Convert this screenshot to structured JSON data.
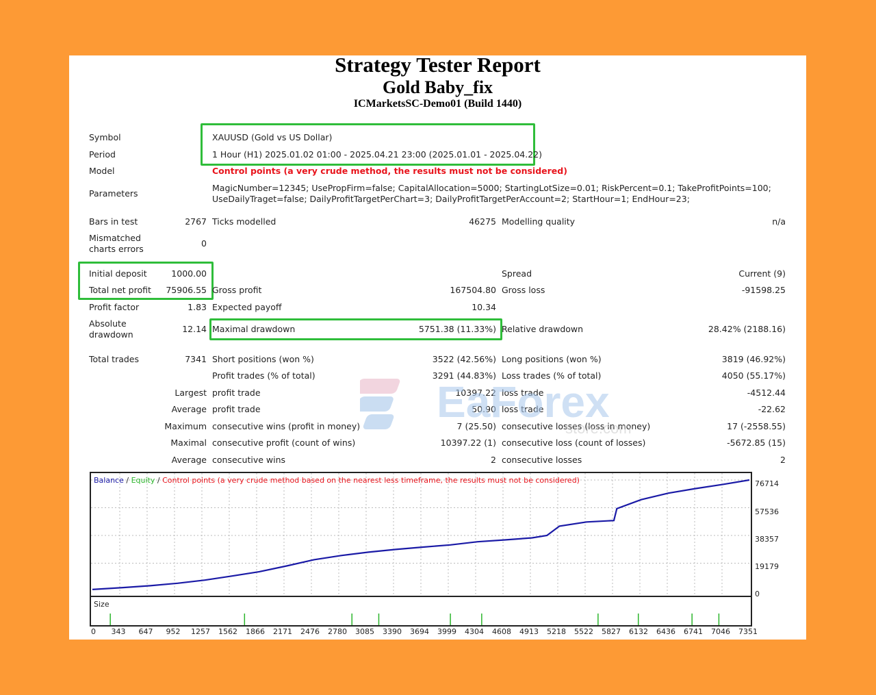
{
  "report": {
    "title": "Strategy Tester Report",
    "expert": "Gold Baby_fix",
    "server": "ICMarketsSC-Demo01 (Build 1440)"
  },
  "rows": {
    "symbol_label": "Symbol",
    "symbol_value": "XAUUSD (Gold vs US Dollar)",
    "period_label": "Period",
    "period_value": "1 Hour (H1) 2025.01.02 01:00 - 2025.04.21 23:00 (2025.01.01 - 2025.04.22)",
    "model_label": "Model",
    "model_value": "Control points (a very crude method, the results must not be considered)",
    "parameters_label": "Parameters",
    "parameters_line1": "MagicNumber=12345; UsePropFirm=false; CapitalAllocation=5000; StartingLotSize=0.01; RiskPercent=0.1; TakeProfitPoints=100;",
    "parameters_line2": "UseDailyTraget=false; DailyProfitTargetPerChart=3; DailyProfitTargetPerAccount=2; StartHour=1; EndHour=23;"
  },
  "stats": {
    "bars_label": "Bars in test",
    "bars_value": "2767",
    "ticks_label": "Ticks modelled",
    "ticks_value": "46275",
    "quality_label": "Modelling quality",
    "quality_value": "n/a",
    "mismatch_label1": "Mismatched",
    "mismatch_label2": "charts errors",
    "mismatch_value": "0",
    "deposit_label": "Initial deposit",
    "deposit_value": "1000.00",
    "spread_label": "Spread",
    "spread_value": "Current (9)",
    "netprofit_label": "Total net profit",
    "netprofit_value": "75906.55",
    "grossprofit_label": "Gross profit",
    "grossprofit_value": "167504.80",
    "grossloss_label": "Gross loss",
    "grossloss_value": "-91598.25",
    "pf_label": "Profit factor",
    "pf_value": "1.83",
    "payoff_label": "Expected payoff",
    "payoff_value": "10.34",
    "absdd_label1": "Absolute",
    "absdd_label2": "drawdown",
    "absdd_value": "12.14",
    "maxdd_label": "Maximal drawdown",
    "maxdd_value": "5751.38 (11.33%)",
    "reldd_label": "Relative drawdown",
    "reldd_value": "28.42% (2188.16)",
    "trades_label": "Total trades",
    "trades_value": "7341",
    "short_label": "Short positions (won %)",
    "short_value": "3522 (42.56%)",
    "long_label": "Long positions (won %)",
    "long_value": "3819 (46.92%)",
    "profit_trades_label": "Profit trades (% of total)",
    "profit_trades_value": "3291 (44.83%)",
    "loss_trades_label": "Loss trades (% of total)",
    "loss_trades_value": "4050 (55.17%)",
    "largest_label": "Largest",
    "largest_profit_label": "profit trade",
    "largest_profit_value": "10397.22",
    "largest_loss_label": "loss trade",
    "largest_loss_value": "-4512.44",
    "average_label": "Average",
    "average_profit_label": "profit trade",
    "average_profit_value": "50.90",
    "average_loss_label": "loss trade",
    "average_loss_value": "-22.62",
    "maximum_label": "Maximum",
    "max_wins_label": "consecutive wins (profit in money)",
    "max_wins_value": "7 (25.50)",
    "max_losses_label": "consecutive losses (loss in money)",
    "max_losses_value": "17 (-2558.55)",
    "maximal_label": "Maximal",
    "maximal_profit_label": "consecutive profit (count of wins)",
    "maximal_profit_value": "10397.22 (1)",
    "maximal_loss_label": "consecutive loss (count of losses)",
    "maximal_loss_value": "-5672.85 (15)",
    "avg_cons_label": "Average",
    "avg_cons_wins_label": "consecutive wins",
    "avg_cons_wins_value": "2",
    "avg_cons_losses_label": "consecutive losses",
    "avg_cons_losses_value": "2"
  },
  "watermark": {
    "text_main": "EaForex",
    "text_sub": "store.com"
  },
  "chart_data": {
    "type": "line",
    "legend": {
      "balance": "Balance",
      "sep1": " / ",
      "equity": "Equity",
      "sep2": " / ",
      "note": "Control points (a very crude method based on the nearest less timeframe, the results must not be considered)"
    },
    "size_label": "Size",
    "y_ticks": [
      "76714",
      "57536",
      "38357",
      "19179",
      "0"
    ],
    "x_ticks": [
      "0",
      "343",
      "647",
      "952",
      "1257",
      "1562",
      "1866",
      "2171",
      "2476",
      "2780",
      "3085",
      "3390",
      "3694",
      "3999",
      "4304",
      "4608",
      "4913",
      "5218",
      "5522",
      "5827",
      "6132",
      "6436",
      "6741",
      "7046",
      "7351"
    ],
    "ylim": [
      0,
      76714
    ],
    "xlim": [
      0,
      7341
    ],
    "colors": {
      "balance": "#1a1aa6",
      "equity": "#2bb52b",
      "note": "#e8141c",
      "size": "#2bb52b"
    },
    "series": [
      {
        "name": "Balance",
        "x": [
          0,
          343,
          647,
          952,
          1257,
          1562,
          1866,
          2171,
          2476,
          2780,
          3085,
          3390,
          3694,
          3999,
          4304,
          4608,
          4913,
          5080,
          5218,
          5522,
          5827,
          5860,
          6132,
          6436,
          6741,
          7046,
          7341
        ],
        "y": [
          1000,
          2300,
          3600,
          5300,
          7500,
          10300,
          13300,
          17300,
          21600,
          24500,
          26800,
          28700,
          30300,
          31800,
          34000,
          35300,
          36700,
          38400,
          44800,
          47700,
          48700,
          56900,
          63100,
          67600,
          70800,
          73700,
          76714
        ]
      }
    ],
    "size_spikes_x": [
      200,
      1700,
      2900,
      3200,
      4000,
      4350,
      5650,
      6100,
      6700,
      7000
    ]
  }
}
